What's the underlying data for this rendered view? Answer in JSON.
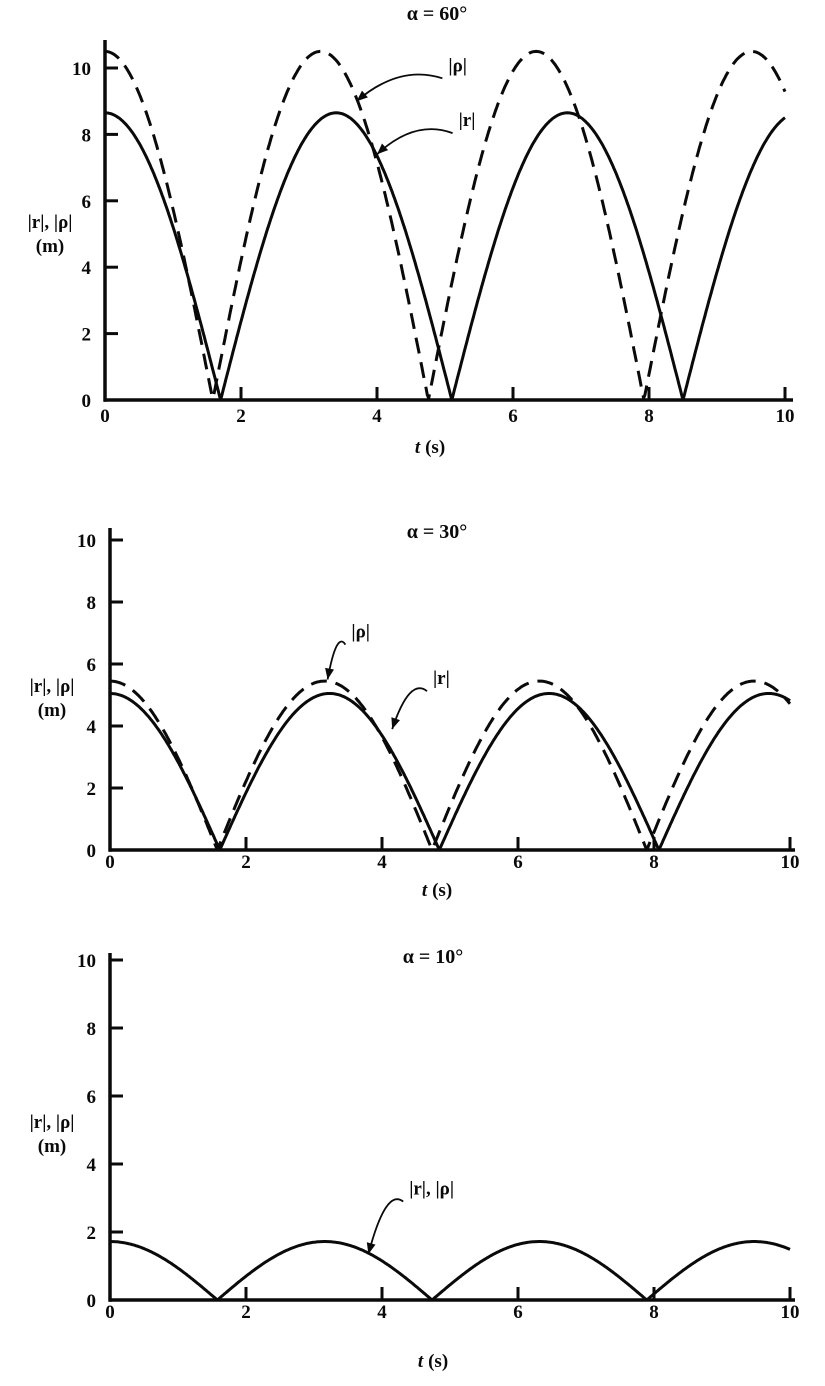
{
  "figure": {
    "background": "#ffffff",
    "ink": "#0a0a0a",
    "description": "Three stacked textbook plots of |r| and |rho| versus time for release angles 60, 30 and 10 degrees"
  },
  "chart_data": [
    {
      "type": "line",
      "title": "α = 60°",
      "xlabel_italic": "t",
      "xlabel_roman": "(s)",
      "ylabel_line1": "|r|, |ρ|",
      "ylabel_line2": "(m)",
      "xlim": [
        0,
        10
      ],
      "ylim": [
        0,
        10
      ],
      "xticks": [
        0,
        2,
        4,
        6,
        8,
        10
      ],
      "yticks": [
        0,
        2,
        4,
        6,
        8,
        10
      ],
      "grid": false,
      "series": [
        {
          "id": "rho",
          "name": "|ρ|",
          "line": "dashed",
          "model": "y = A·|cos(ω·t)|",
          "amplitude": 10.5,
          "omega": 0.991,
          "value_at_t0": 10.5,
          "zeros_t": [
            1.59,
            4.75,
            7.92
          ],
          "peaks_t": [
            3.17,
            6.34,
            9.51
          ],
          "peak_value": 10.5
        },
        {
          "id": "r",
          "name": "|r|",
          "line": "solid",
          "model": "y = A·|cos(ω·t)|",
          "amplitude": 8.65,
          "omega": 0.924,
          "value_at_t0": 8.65,
          "zeros_t": [
            1.7,
            5.1,
            8.5
          ],
          "peaks_t": [
            3.4,
            6.8
          ],
          "peak_value": 8.6
        }
      ],
      "annotations": [
        {
          "text": "|ρ|",
          "t": 5.05,
          "y": 9.9,
          "tip_t": 3.7,
          "tip_y": 9.0
        },
        {
          "text": "|r|",
          "t": 5.2,
          "y": 8.25,
          "tip_t": 4.0,
          "tip_y": 7.4
        }
      ]
    },
    {
      "type": "line",
      "title": "α = 30°",
      "xlabel_italic": "t",
      "xlabel_roman": "(s)",
      "ylabel_line1": "|r|, |ρ|",
      "ylabel_line2": "(m)",
      "xlim": [
        0,
        10
      ],
      "ylim": [
        0,
        10
      ],
      "xticks": [
        0,
        2,
        4,
        6,
        8,
        10
      ],
      "yticks": [
        0,
        2,
        4,
        6,
        8,
        10
      ],
      "grid": false,
      "series": [
        {
          "id": "rho",
          "name": "|ρ|",
          "line": "dashed",
          "model": "y = A·|cos(ω·t)|",
          "amplitude": 5.45,
          "omega": 0.995,
          "value_at_t0": 5.45,
          "zeros_t": [
            1.58,
            4.74,
            7.9
          ],
          "peaks_t": [
            3.16,
            6.31,
            9.47
          ],
          "peak_value": 5.45
        },
        {
          "id": "r",
          "name": "|r|",
          "line": "solid",
          "model": "y = A·|cos(ω·t)|",
          "amplitude": 5.05,
          "omega": 0.973,
          "value_at_t0": 5.05,
          "zeros_t": [
            1.61,
            4.84,
            8.07
          ],
          "peaks_t": [
            3.23,
            6.46,
            9.69
          ],
          "peak_value": 5.05
        }
      ],
      "annotations": [
        {
          "text": "|ρ|",
          "t": 3.55,
          "y": 6.85,
          "tip_t": 3.2,
          "tip_y": 5.5
        },
        {
          "text": "|r|",
          "t": 4.75,
          "y": 5.35,
          "tip_t": 4.15,
          "tip_y": 3.9
        }
      ]
    },
    {
      "type": "line",
      "title": "α = 10°",
      "xlabel_italic": "t",
      "xlabel_roman": "(s)",
      "ylabel_line1": "|r|, |ρ|",
      "ylabel_line2": "(m)",
      "xlim": [
        0,
        10
      ],
      "ylim": [
        0,
        10
      ],
      "xticks": [
        0,
        2,
        4,
        6,
        8,
        10
      ],
      "yticks": [
        0,
        2,
        4,
        6,
        8,
        10
      ],
      "grid": false,
      "series": [
        {
          "id": "r-rho",
          "name": "|r|, |ρ|",
          "line": "solid",
          "model": "y = A·|cos(ω·t)| (curves coincide)",
          "amplitude": 1.72,
          "omega": 0.995,
          "value_at_t0": 1.72,
          "zeros_t": [
            1.58,
            4.74,
            7.9
          ],
          "peaks_t": [
            3.16,
            6.31,
            9.47
          ],
          "peak_value": 1.72
        }
      ],
      "annotations": [
        {
          "text": "|r|, |ρ|",
          "t": 4.4,
          "y": 3.1,
          "tip_t": 3.8,
          "tip_y": 1.35
        }
      ]
    }
  ]
}
